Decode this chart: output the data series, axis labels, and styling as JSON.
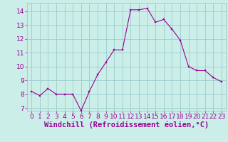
{
  "x": [
    0,
    1,
    2,
    3,
    4,
    5,
    6,
    7,
    8,
    9,
    10,
    11,
    12,
    13,
    14,
    15,
    16,
    17,
    18,
    19,
    20,
    21,
    22,
    23
  ],
  "y": [
    8.2,
    7.9,
    8.4,
    8.0,
    8.0,
    8.0,
    6.8,
    8.2,
    9.4,
    10.3,
    11.2,
    11.2,
    14.1,
    14.1,
    14.2,
    13.2,
    13.4,
    12.7,
    11.9,
    10.0,
    9.7,
    9.7,
    9.2,
    8.9
  ],
  "line_color": "#990099",
  "marker_color": "#990099",
  "background_color": "#cceee8",
  "grid_color": "#99cccc",
  "xlabel": "Windchill (Refroidissement éolien,°C)",
  "ylim": [
    6.8,
    14.6
  ],
  "xlim": [
    -0.5,
    23.5
  ],
  "yticks": [
    7,
    8,
    9,
    10,
    11,
    12,
    13,
    14
  ],
  "xticks": [
    0,
    1,
    2,
    3,
    4,
    5,
    6,
    7,
    8,
    9,
    10,
    11,
    12,
    13,
    14,
    15,
    16,
    17,
    18,
    19,
    20,
    21,
    22,
    23
  ],
  "label_fontsize": 7.5,
  "tick_fontsize": 6.5
}
